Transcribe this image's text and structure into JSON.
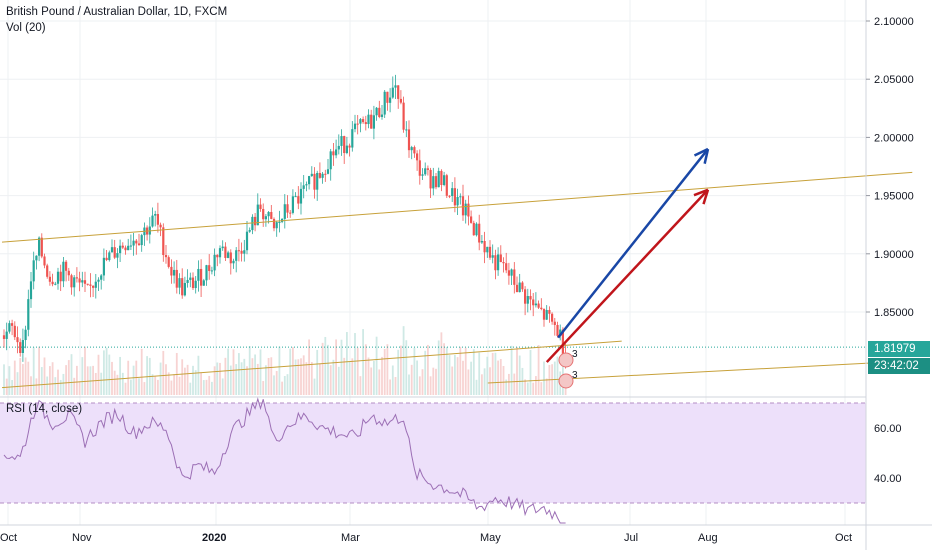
{
  "header": {
    "title": "British Pound / Australian Dollar, 1D, FXCM",
    "volume_label": "Vol (20)",
    "rsi_label": "RSI (14, close)"
  },
  "price_badge": {
    "price": "1.81979",
    "countdown": "23:42:02",
    "color": "#26a69a",
    "countdown_color": "#1c8f83"
  },
  "colors": {
    "up": "#26a69a",
    "down": "#ef5350",
    "trend": "#c7a13a",
    "rsi_line": "#9c6fb5",
    "rsi_band": "#ede0fa",
    "blue_arrow": "#1947a6",
    "red_arrow": "#c0151b"
  },
  "event_markers": [
    "3",
    "3"
  ],
  "chart_data": {
    "type": "candlestick",
    "title": "British Pound / Australian Dollar, 1D, FXCM",
    "y_ticks": [
      "2.10000",
      "2.05000",
      "2.00000",
      "1.95000",
      "1.90000",
      "1.85000"
    ],
    "x_ticks": [
      "Oct",
      "Nov",
      "2020",
      "Mar",
      "May",
      "Jul",
      "Aug",
      "Oct"
    ],
    "rsi_ticks": [
      "60.00",
      "40.00"
    ],
    "rsi_levels": [
      70,
      30
    ],
    "price_anchors": [
      [
        0,
        1.83
      ],
      [
        3,
        1.835
      ],
      [
        7,
        1.82
      ],
      [
        10,
        1.88
      ],
      [
        13,
        1.905
      ],
      [
        17,
        1.88
      ],
      [
        22,
        1.885
      ],
      [
        27,
        1.875
      ],
      [
        31,
        1.865
      ],
      [
        35,
        1.885
      ],
      [
        40,
        1.9
      ],
      [
        45,
        1.91
      ],
      [
        50,
        1.915
      ],
      [
        56,
        1.93
      ],
      [
        62,
        1.885
      ],
      [
        66,
        1.87
      ],
      [
        70,
        1.875
      ],
      [
        75,
        1.885
      ],
      [
        80,
        1.905
      ],
      [
        85,
        1.895
      ],
      [
        90,
        1.915
      ],
      [
        95,
        1.94
      ],
      [
        100,
        1.92
      ],
      [
        104,
        1.935
      ],
      [
        108,
        1.945
      ],
      [
        112,
        1.955
      ],
      [
        117,
        1.97
      ],
      [
        121,
        1.985
      ],
      [
        126,
        1.995
      ],
      [
        130,
        2.005
      ],
      [
        134,
        2.01
      ],
      [
        138,
        2.02
      ],
      [
        142,
        2.035
      ],
      [
        145,
        2.045
      ],
      [
        149,
        2.0
      ],
      [
        153,
        1.975
      ],
      [
        157,
        1.965
      ],
      [
        161,
        1.965
      ],
      [
        166,
        1.95
      ],
      [
        171,
        1.935
      ],
      [
        176,
        1.915
      ],
      [
        181,
        1.895
      ],
      [
        186,
        1.885
      ],
      [
        191,
        1.87
      ],
      [
        196,
        1.855
      ],
      [
        201,
        1.845
      ],
      [
        205,
        1.835
      ],
      [
        208,
        1.815
      ]
    ],
    "rsi_anchors": [
      [
        0,
        50
      ],
      [
        6,
        48
      ],
      [
        12,
        70
      ],
      [
        18,
        62
      ],
      [
        24,
        65
      ],
      [
        30,
        55
      ],
      [
        36,
        62
      ],
      [
        42,
        66
      ],
      [
        48,
        58
      ],
      [
        54,
        62
      ],
      [
        60,
        60
      ],
      [
        66,
        40
      ],
      [
        72,
        45
      ],
      [
        78,
        42
      ],
      [
        84,
        58
      ],
      [
        90,
        65
      ],
      [
        96,
        72
      ],
      [
        100,
        55
      ],
      [
        106,
        62
      ],
      [
        112,
        65
      ],
      [
        118,
        60
      ],
      [
        124,
        58
      ],
      [
        130,
        56
      ],
      [
        136,
        65
      ],
      [
        142,
        62
      ],
      [
        148,
        65
      ],
      [
        152,
        42
      ],
      [
        158,
        38
      ],
      [
        164,
        36
      ],
      [
        170,
        33
      ],
      [
        176,
        28
      ],
      [
        182,
        32
      ],
      [
        188,
        30
      ],
      [
        194,
        27
      ],
      [
        200,
        28
      ],
      [
        205,
        25
      ],
      [
        208,
        22
      ]
    ],
    "trendlines": [
      {
        "points": [
          [
            "2019-09-26",
            1.91
          ],
          [
            "2020-10-31",
            1.97
          ]
        ]
      },
      {
        "points": [
          [
            "2019-09-26",
            1.785
          ],
          [
            "2020-06-25",
            1.825
          ]
        ]
      },
      {
        "points": [
          [
            "2020-04-27",
            1.789
          ],
          [
            "2020-10-31",
            1.808
          ]
        ]
      }
    ],
    "forecast_arrows": [
      {
        "color": "blue",
        "from": [
          "2020-05-28",
          1.828
        ],
        "to": [
          "2020-08-02",
          1.99
        ]
      },
      {
        "color": "red",
        "from": [
          "2020-05-23",
          1.807
        ],
        "to": [
          "2020-08-02",
          1.955
        ]
      }
    ],
    "last_price": 1.81979
  }
}
